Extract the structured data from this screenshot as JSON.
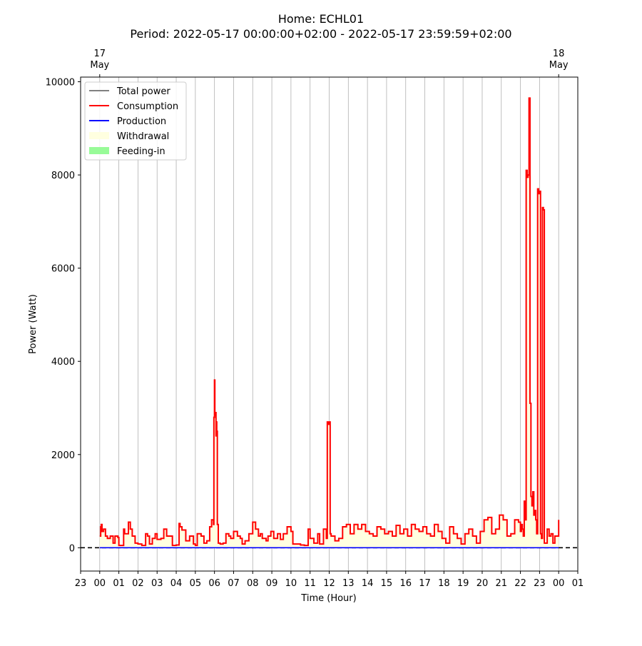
{
  "chart_data": {
    "type": "line",
    "title": "Home: ECHL01",
    "subtitle": "Period: 2022-05-17 00:00:00+02:00 - 2022-05-17 23:59:59+02:00",
    "xlabel": "Time (Hour)",
    "ylabel": "Power (Watt)",
    "xlim": [
      -1,
      25
    ],
    "ylim": [
      -500,
      10100
    ],
    "x_ticks": [
      "23",
      "00",
      "01",
      "02",
      "03",
      "04",
      "05",
      "06",
      "07",
      "08",
      "09",
      "10",
      "11",
      "12",
      "13",
      "14",
      "15",
      "16",
      "17",
      "18",
      "19",
      "20",
      "21",
      "22",
      "23",
      "00",
      "01"
    ],
    "y_ticks": [
      0,
      2000,
      4000,
      6000,
      8000,
      10000
    ],
    "top_ticks": [
      {
        "x": 0,
        "label1": "17",
        "label2": "May"
      },
      {
        "x": 24,
        "label1": "18",
        "label2": "May"
      }
    ],
    "grid": "vertical",
    "legend_position": "top-left",
    "legend": [
      {
        "label": "Total power",
        "kind": "line",
        "color": "#808080"
      },
      {
        "label": "Consumption",
        "kind": "line",
        "color": "#ff0000"
      },
      {
        "label": "Production",
        "kind": "line",
        "color": "#0000ff"
      },
      {
        "label": "Withdrawal",
        "kind": "patch",
        "color": "#ffffe0"
      },
      {
        "label": "Feeding-in",
        "kind": "patch",
        "color": "#98fb98"
      }
    ],
    "series": [
      {
        "name": "Consumption",
        "color": "#ff0000",
        "x": [
          0.0,
          0.05,
          0.08,
          0.12,
          0.2,
          0.3,
          0.4,
          0.55,
          0.7,
          0.8,
          0.95,
          1.0,
          1.1,
          1.25,
          1.3,
          1.5,
          1.6,
          1.7,
          1.85,
          2.0,
          2.2,
          2.4,
          2.5,
          2.6,
          2.75,
          2.9,
          3.0,
          3.2,
          3.35,
          3.5,
          3.8,
          4.0,
          4.15,
          4.2,
          4.3,
          4.5,
          4.7,
          4.9,
          5.0,
          5.1,
          5.3,
          5.45,
          5.6,
          5.75,
          5.85,
          5.95,
          5.97,
          6.0,
          6.02,
          6.05,
          6.08,
          6.1,
          6.12,
          6.15,
          6.2,
          6.3,
          6.45,
          6.6,
          6.75,
          6.85,
          7.0,
          7.2,
          7.35,
          7.45,
          7.6,
          7.8,
          8.0,
          8.15,
          8.3,
          8.4,
          8.5,
          8.7,
          8.8,
          8.95,
          9.1,
          9.3,
          9.45,
          9.6,
          9.8,
          10.0,
          10.1,
          10.5,
          10.7,
          10.9,
          11.0,
          11.2,
          11.4,
          11.5,
          11.7,
          11.85,
          11.9,
          11.95,
          12.0,
          12.05,
          12.1,
          12.3,
          12.5,
          12.7,
          12.9,
          13.1,
          13.3,
          13.5,
          13.7,
          13.9,
          14.1,
          14.3,
          14.5,
          14.7,
          14.9,
          15.1,
          15.3,
          15.5,
          15.7,
          15.9,
          16.1,
          16.3,
          16.5,
          16.7,
          16.9,
          17.1,
          17.3,
          17.5,
          17.7,
          17.9,
          18.1,
          18.3,
          18.5,
          18.7,
          18.9,
          19.1,
          19.3,
          19.5,
          19.7,
          19.9,
          20.1,
          20.3,
          20.5,
          20.7,
          20.9,
          21.1,
          21.3,
          21.5,
          21.7,
          21.9,
          22.0,
          22.05,
          22.1,
          22.15,
          22.2,
          22.25,
          22.3,
          22.35,
          22.4,
          22.45,
          22.5,
          22.55,
          22.6,
          22.65,
          22.7,
          22.75,
          22.8,
          22.85,
          22.9,
          22.95,
          23.0,
          23.05,
          23.1,
          23.15,
          23.2,
          23.25,
          23.3,
          23.4,
          23.5,
          23.6,
          23.7,
          23.8,
          23.9,
          24.0
        ],
        "values": [
          250,
          450,
          500,
          350,
          400,
          250,
          200,
          250,
          100,
          250,
          220,
          50,
          50,
          400,
          300,
          550,
          400,
          250,
          100,
          80,
          50,
          300,
          250,
          80,
          200,
          300,
          180,
          200,
          400,
          250,
          50,
          60,
          520,
          450,
          380,
          150,
          250,
          80,
          50,
          300,
          250,
          100,
          150,
          450,
          600,
          500,
          2800,
          3600,
          2850,
          2900,
          2400,
          2700,
          2500,
          500,
          100,
          80,
          100,
          300,
          250,
          200,
          350,
          250,
          200,
          80,
          150,
          300,
          550,
          400,
          250,
          300,
          200,
          150,
          250,
          350,
          200,
          300,
          180,
          300,
          450,
          350,
          80,
          60,
          50,
          400,
          200,
          100,
          300,
          80,
          400,
          200,
          2700,
          2650,
          2700,
          300,
          250,
          150,
          200,
          450,
          500,
          300,
          500,
          400,
          500,
          350,
          300,
          250,
          450,
          400,
          300,
          350,
          250,
          480,
          300,
          400,
          250,
          500,
          400,
          350,
          450,
          300,
          250,
          500,
          350,
          200,
          100,
          450,
          300,
          200,
          80,
          300,
          400,
          250,
          100,
          350,
          600,
          650,
          300,
          400,
          700,
          600,
          250,
          300,
          600,
          550,
          350,
          500,
          400,
          250,
          1000,
          600,
          8100,
          7950,
          8000,
          9650,
          3100,
          1100,
          900,
          1200,
          700,
          800,
          600,
          300,
          7700,
          7600,
          7650,
          300,
          200,
          7300,
          7250,
          100,
          100,
          400,
          250,
          300,
          100,
          250,
          250,
          600
        ]
      },
      {
        "name": "Production",
        "color": "#0000ff",
        "x": [
          0,
          24
        ],
        "values": [
          0,
          0
        ]
      }
    ]
  }
}
